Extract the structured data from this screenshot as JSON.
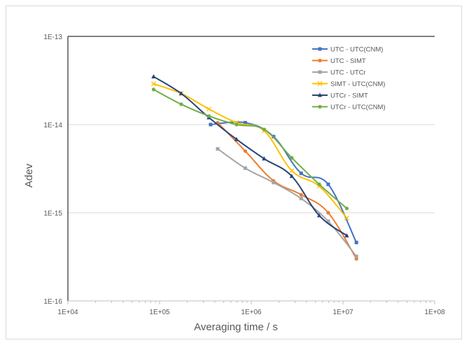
{
  "chart_data": {
    "type": "line",
    "title": "",
    "xlabel": "Averaging time / s",
    "ylabel": "Adev",
    "x_scale": "log",
    "y_scale": "log",
    "xlim": [
      10000.0,
      100000000.0
    ],
    "ylim": [
      1e-16,
      1e-13
    ],
    "x_tick_labels": [
      "1E+04",
      "1E+05",
      "1E+06",
      "1E+07",
      "1E+08"
    ],
    "y_tick_labels": [
      "1E-16",
      "1E-15",
      "1E-14",
      "1E-13"
    ],
    "grid": "horizontal major",
    "legend_position": "top-right",
    "series": [
      {
        "name": "UTC - UTC(CNM)",
        "color": "#4472c4",
        "marker": "square",
        "x": [
          360000,
          860000,
          1750000,
          3500000,
          6900000,
          14000000
        ],
        "y": [
          1e-14,
          1.05e-14,
          7.3e-15,
          2.8e-15,
          2.1e-15,
          4.6e-16
        ]
      },
      {
        "name": "UTC - SIMT",
        "color": "#ed7d31",
        "marker": "circle",
        "x": [
          430000,
          860000,
          1750000,
          3500000,
          6900000,
          14000000
        ],
        "y": [
          1.05e-14,
          5e-15,
          2.3e-15,
          1.6e-15,
          1e-15,
          3e-16
        ]
      },
      {
        "name": "UTC - UTCr",
        "color": "#a5a5a5",
        "marker": "square",
        "x": [
          430000,
          860000,
          1750000,
          3500000,
          6900000,
          14000000
        ],
        "y": [
          5.3e-15,
          3.2e-15,
          2.2e-15,
          1.45e-15,
          8e-16,
          3.2e-16
        ]
      },
      {
        "name": "SIMT - UTC(CNM)",
        "color": "#ffc000",
        "marker": "x",
        "x": [
          86000,
          172000,
          345000,
          690000,
          1380000,
          2760000,
          5500000,
          11000000
        ],
        "y": [
          2.9e-14,
          2.25e-14,
          1.5e-14,
          1.05e-14,
          8.5e-15,
          3e-15,
          2e-15,
          8.7e-16
        ]
      },
      {
        "name": "UTCr - SIMT",
        "color": "#264478",
        "marker": "triangle",
        "x": [
          86000,
          172000,
          345000,
          690000,
          1380000,
          2760000,
          5500000,
          11000000
        ],
        "y": [
          3.5e-14,
          2.25e-14,
          1.2e-14,
          6.8e-15,
          4.1e-15,
          2.6e-15,
          9.3e-16,
          5.5e-16
        ]
      },
      {
        "name": "UTCr - UTC(CNM)",
        "color": "#70ad47",
        "marker": "circle",
        "x": [
          86000,
          172000,
          345000,
          690000,
          1380000,
          2760000,
          5500000,
          11000000
        ],
        "y": [
          2.5e-14,
          1.7e-14,
          1.25e-14,
          1e-14,
          8.8e-15,
          4.2e-15,
          2.1e-15,
          1.12e-15
        ]
      }
    ]
  }
}
